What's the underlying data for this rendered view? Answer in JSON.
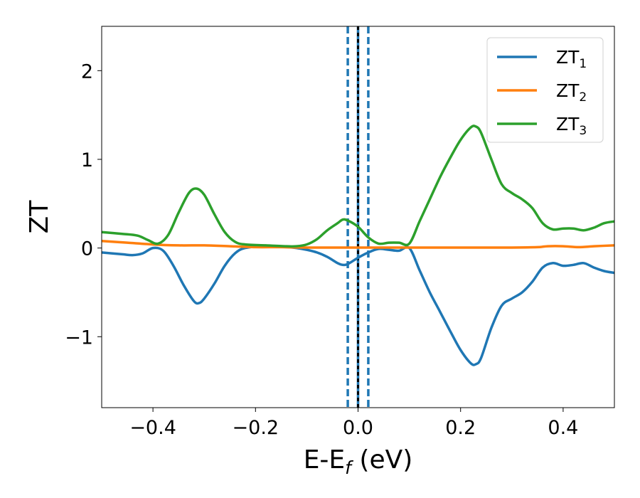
{
  "chart_data": {
    "type": "line",
    "xlabel": "E-E",
    "xlabel_sub": "f",
    "xlabel_unit": " (eV)",
    "ylabel": "ZT",
    "xlim": [
      -0.5,
      0.5
    ],
    "ylim": [
      -1.8,
      2.5
    ],
    "xticks": [
      -0.4,
      -0.2,
      0.0,
      0.2,
      0.4
    ],
    "xtick_labels": [
      "−0.4",
      "−0.2",
      "0.0",
      "0.2",
      "0.4"
    ],
    "yticks": [
      -1,
      0,
      1,
      2
    ],
    "ytick_labels": [
      "−1",
      "0",
      "1",
      "2"
    ],
    "legend_position": "top-right",
    "grid": false,
    "series": [
      {
        "name": "ZT",
        "name_sub": "1",
        "color": "#1f77b4",
        "points": [
          [
            -0.5,
            -0.05
          ],
          [
            -0.46,
            -0.07
          ],
          [
            -0.44,
            -0.08
          ],
          [
            -0.42,
            -0.06
          ],
          [
            -0.4,
            0.0
          ],
          [
            -0.38,
            -0.03
          ],
          [
            -0.36,
            -0.2
          ],
          [
            -0.34,
            -0.42
          ],
          [
            -0.32,
            -0.6
          ],
          [
            -0.31,
            -0.62
          ],
          [
            -0.3,
            -0.57
          ],
          [
            -0.28,
            -0.4
          ],
          [
            -0.26,
            -0.2
          ],
          [
            -0.24,
            -0.06
          ],
          [
            -0.22,
            0.0
          ],
          [
            -0.18,
            0.02
          ],
          [
            -0.14,
            0.01
          ],
          [
            -0.12,
            0.0
          ],
          [
            -0.1,
            -0.02
          ],
          [
            -0.08,
            -0.05
          ],
          [
            -0.06,
            -0.1
          ],
          [
            -0.04,
            -0.17
          ],
          [
            -0.03,
            -0.19
          ],
          [
            -0.02,
            -0.18
          ],
          [
            0.0,
            -0.11
          ],
          [
            0.02,
            -0.05
          ],
          [
            0.04,
            -0.01
          ],
          [
            0.06,
            -0.02
          ],
          [
            0.08,
            -0.03
          ],
          [
            0.1,
            0.0
          ],
          [
            0.12,
            -0.25
          ],
          [
            0.14,
            -0.5
          ],
          [
            0.16,
            -0.72
          ],
          [
            0.18,
            -0.94
          ],
          [
            0.2,
            -1.15
          ],
          [
            0.22,
            -1.3
          ],
          [
            0.23,
            -1.31
          ],
          [
            0.24,
            -1.24
          ],
          [
            0.26,
            -0.9
          ],
          [
            0.28,
            -0.65
          ],
          [
            0.3,
            -0.57
          ],
          [
            0.32,
            -0.5
          ],
          [
            0.34,
            -0.38
          ],
          [
            0.36,
            -0.22
          ],
          [
            0.38,
            -0.17
          ],
          [
            0.4,
            -0.2
          ],
          [
            0.42,
            -0.19
          ],
          [
            0.44,
            -0.17
          ],
          [
            0.46,
            -0.22
          ],
          [
            0.48,
            -0.26
          ],
          [
            0.5,
            -0.28
          ]
        ]
      },
      {
        "name": "ZT",
        "name_sub": "2",
        "color": "#ff7f0e",
        "points": [
          [
            -0.5,
            0.08
          ],
          [
            -0.45,
            0.06
          ],
          [
            -0.4,
            0.04
          ],
          [
            -0.35,
            0.03
          ],
          [
            -0.3,
            0.03
          ],
          [
            -0.25,
            0.02
          ],
          [
            -0.2,
            0.01
          ],
          [
            -0.15,
            0.01
          ],
          [
            -0.1,
            0.005
          ],
          [
            -0.05,
            0.005
          ],
          [
            0.0,
            0.005
          ],
          [
            0.05,
            0.005
          ],
          [
            0.1,
            0.005
          ],
          [
            0.15,
            0.005
          ],
          [
            0.2,
            0.005
          ],
          [
            0.25,
            0.005
          ],
          [
            0.3,
            0.005
          ],
          [
            0.35,
            0.01
          ],
          [
            0.37,
            0.02
          ],
          [
            0.4,
            0.02
          ],
          [
            0.43,
            0.01
          ],
          [
            0.46,
            0.02
          ],
          [
            0.5,
            0.03
          ]
        ]
      },
      {
        "name": "ZT",
        "name_sub": "3",
        "color": "#2ca02c",
        "points": [
          [
            -0.5,
            0.18
          ],
          [
            -0.46,
            0.16
          ],
          [
            -0.43,
            0.14
          ],
          [
            -0.41,
            0.09
          ],
          [
            -0.39,
            0.05
          ],
          [
            -0.37,
            0.15
          ],
          [
            -0.35,
            0.4
          ],
          [
            -0.33,
            0.62
          ],
          [
            -0.315,
            0.67
          ],
          [
            -0.3,
            0.6
          ],
          [
            -0.28,
            0.38
          ],
          [
            -0.26,
            0.18
          ],
          [
            -0.24,
            0.07
          ],
          [
            -0.22,
            0.04
          ],
          [
            -0.18,
            0.03
          ],
          [
            -0.14,
            0.02
          ],
          [
            -0.12,
            0.02
          ],
          [
            -0.1,
            0.04
          ],
          [
            -0.08,
            0.1
          ],
          [
            -0.06,
            0.2
          ],
          [
            -0.04,
            0.28
          ],
          [
            -0.03,
            0.32
          ],
          [
            -0.02,
            0.31
          ],
          [
            0.0,
            0.24
          ],
          [
            0.02,
            0.12
          ],
          [
            0.04,
            0.05
          ],
          [
            0.06,
            0.06
          ],
          [
            0.08,
            0.06
          ],
          [
            0.1,
            0.05
          ],
          [
            0.12,
            0.3
          ],
          [
            0.14,
            0.55
          ],
          [
            0.16,
            0.8
          ],
          [
            0.18,
            1.02
          ],
          [
            0.2,
            1.22
          ],
          [
            0.22,
            1.36
          ],
          [
            0.23,
            1.37
          ],
          [
            0.24,
            1.3
          ],
          [
            0.26,
            1.0
          ],
          [
            0.28,
            0.72
          ],
          [
            0.3,
            0.62
          ],
          [
            0.32,
            0.55
          ],
          [
            0.34,
            0.45
          ],
          [
            0.36,
            0.28
          ],
          [
            0.38,
            0.21
          ],
          [
            0.4,
            0.22
          ],
          [
            0.42,
            0.22
          ],
          [
            0.44,
            0.2
          ],
          [
            0.46,
            0.23
          ],
          [
            0.48,
            0.28
          ],
          [
            0.5,
            0.3
          ]
        ]
      }
    ],
    "vlines": [
      {
        "x": -0.02,
        "color": "#1f77b4",
        "style": "dashed"
      },
      {
        "x": 0.02,
        "color": "#1f77b4",
        "style": "dashed"
      },
      {
        "x": 0.0,
        "color": "#1f77b4",
        "style": "solid"
      },
      {
        "x": 0.0,
        "color": "#000000",
        "style": "dotted"
      }
    ]
  }
}
